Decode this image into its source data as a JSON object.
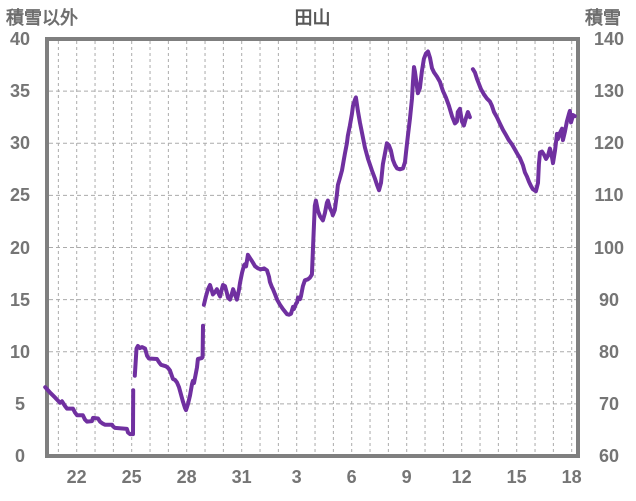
{
  "header": {
    "left_axis_title": "積雪以外",
    "title": "田山",
    "right_axis_title": "積雪"
  },
  "chart_data": {
    "type": "line",
    "title": "田山",
    "legend": "none",
    "grid": "dashed gray, vertical line per day, horizontal line per 5 units",
    "line_color": "#7030A0",
    "y_left": {
      "label": "積雪以外",
      "range": [
        0,
        40
      ],
      "ticks": [
        0,
        5,
        10,
        15,
        20,
        25,
        30,
        35,
        40
      ]
    },
    "y_right": {
      "label": "積雪",
      "range": [
        60,
        140
      ],
      "ticks": [
        60,
        70,
        80,
        90,
        100,
        110,
        120,
        130,
        140
      ],
      "mapping": "right_value = 60 + 2 * left_axis_value"
    },
    "x": {
      "range_days": [
        20.3,
        49.4
      ],
      "tick_labels": [
        "22",
        "25",
        "28",
        "31",
        "3",
        "6",
        "9",
        "12",
        "15",
        "18"
      ],
      "tick_days": [
        22,
        25,
        28,
        31,
        34,
        37,
        40,
        43,
        46,
        49
      ],
      "note": "days of month, month rollover after 31"
    },
    "series": [
      {
        "name": "積雪",
        "units_left_axis": true,
        "segments": [
          [
            [
              20.28,
              6.6
            ],
            [
              20.54,
              6.1
            ],
            [
              20.82,
              5.6
            ],
            [
              21.09,
              5.1
            ],
            [
              21.2,
              5.25
            ],
            [
              21.36,
              4.8
            ],
            [
              21.47,
              4.55
            ],
            [
              21.8,
              4.55
            ],
            [
              21.91,
              4.15
            ],
            [
              22.02,
              3.9
            ],
            [
              22.34,
              3.9
            ],
            [
              22.45,
              3.5
            ],
            [
              22.56,
              3.3
            ],
            [
              22.83,
              3.35
            ],
            [
              22.89,
              3.65
            ],
            [
              23.16,
              3.6
            ],
            [
              23.27,
              3.3
            ],
            [
              23.43,
              3.1
            ],
            [
              23.54,
              3.0
            ],
            [
              23.93,
              3.0
            ],
            [
              23.98,
              2.85
            ],
            [
              24.09,
              2.7
            ],
            [
              24.74,
              2.6
            ],
            [
              24.8,
              2.25
            ],
            [
              24.91,
              2.1
            ],
            [
              25.07,
              2.1
            ],
            [
              25.08,
              6.3
            ]
          ],
          [
            [
              25.17,
              7.7
            ],
            [
              25.26,
              10.3
            ],
            [
              25.34,
              10.55
            ],
            [
              25.45,
              10.35
            ],
            [
              25.56,
              10.45
            ],
            [
              25.73,
              10.3
            ],
            [
              25.84,
              9.6
            ],
            [
              25.94,
              9.35
            ],
            [
              26.38,
              9.3
            ],
            [
              26.49,
              9.0
            ],
            [
              26.6,
              8.75
            ],
            [
              26.87,
              8.6
            ],
            [
              26.98,
              8.45
            ],
            [
              27.09,
              8.2
            ],
            [
              27.25,
              7.4
            ],
            [
              27.36,
              7.3
            ],
            [
              27.47,
              7.05
            ],
            [
              27.58,
              6.6
            ],
            [
              27.69,
              5.9
            ],
            [
              27.8,
              5.2
            ],
            [
              27.91,
              4.6
            ],
            [
              27.96,
              4.4
            ],
            [
              28.07,
              5.0
            ],
            [
              28.18,
              5.8
            ],
            [
              28.29,
              6.9
            ],
            [
              28.34,
              7.2
            ],
            [
              28.4,
              7.0
            ],
            [
              28.51,
              8.0
            ],
            [
              28.56,
              8.5
            ],
            [
              28.61,
              9.3
            ],
            [
              28.83,
              9.4
            ],
            [
              28.87,
              9.5
            ],
            [
              28.89,
              12.5
            ]
          ],
          [
            [
              28.94,
              14.5
            ],
            [
              29.05,
              15.3
            ],
            [
              29.16,
              16.0
            ],
            [
              29.27,
              16.4
            ],
            [
              29.38,
              15.8
            ],
            [
              29.43,
              15.5
            ],
            [
              29.54,
              15.7
            ],
            [
              29.65,
              16.0
            ],
            [
              29.76,
              15.5
            ],
            [
              29.82,
              15.3
            ],
            [
              29.93,
              16.1
            ],
            [
              29.98,
              16.4
            ],
            [
              30.09,
              16.3
            ],
            [
              30.2,
              15.6
            ],
            [
              30.25,
              15.2
            ],
            [
              30.36,
              15.0
            ],
            [
              30.47,
              15.6
            ],
            [
              30.53,
              16.0
            ],
            [
              30.63,
              15.5
            ],
            [
              30.74,
              15.0
            ],
            [
              30.85,
              15.9
            ],
            [
              30.91,
              16.6
            ],
            [
              31.02,
              17.6
            ],
            [
              31.13,
              18.3
            ],
            [
              31.18,
              18.4
            ],
            [
              31.24,
              18.2
            ],
            [
              31.34,
              19.3
            ],
            [
              31.45,
              19.0
            ],
            [
              31.56,
              18.7
            ],
            [
              31.73,
              18.2
            ],
            [
              31.89,
              18.0
            ],
            [
              32.05,
              17.9
            ],
            [
              32.22,
              18.0
            ],
            [
              32.38,
              17.8
            ],
            [
              32.49,
              17.2
            ],
            [
              32.54,
              16.7
            ],
            [
              32.65,
              16.2
            ],
            [
              32.71,
              16.0
            ],
            [
              32.82,
              15.5
            ],
            [
              32.93,
              15.0
            ],
            [
              33.09,
              14.5
            ],
            [
              33.25,
              14.1
            ],
            [
              33.36,
              13.85
            ],
            [
              33.47,
              13.6
            ],
            [
              33.58,
              13.55
            ],
            [
              33.69,
              13.65
            ],
            [
              33.8,
              14.3
            ],
            [
              33.85,
              14.1
            ],
            [
              33.96,
              14.6
            ],
            [
              34.02,
              14.75
            ],
            [
              34.07,
              15.2
            ],
            [
              34.18,
              15.05
            ],
            [
              34.23,
              15.3
            ],
            [
              34.34,
              16.3
            ],
            [
              34.45,
              16.85
            ],
            [
              34.61,
              16.95
            ],
            [
              34.72,
              17.1
            ],
            [
              34.83,
              17.4
            ],
            [
              34.88,
              19.5
            ],
            [
              34.94,
              22.0
            ],
            [
              34.99,
              24.0
            ],
            [
              35.05,
              24.5
            ],
            [
              35.16,
              23.5
            ],
            [
              35.27,
              23.0
            ],
            [
              35.43,
              22.6
            ],
            [
              35.54,
              23.3
            ],
            [
              35.65,
              24.3
            ],
            [
              35.7,
              24.5
            ],
            [
              35.81,
              23.8
            ],
            [
              35.92,
              23.4
            ],
            [
              35.97,
              23.1
            ],
            [
              36.08,
              23.6
            ],
            [
              36.19,
              25.0
            ],
            [
              36.25,
              26.0
            ],
            [
              36.36,
              26.7
            ],
            [
              36.47,
              27.4
            ],
            [
              36.57,
              28.4
            ],
            [
              36.63,
              29.0
            ],
            [
              36.74,
              30.0
            ],
            [
              36.79,
              30.7
            ],
            [
              36.9,
              31.7
            ],
            [
              37.01,
              32.8
            ],
            [
              37.07,
              33.6
            ],
            [
              37.18,
              34.2
            ],
            [
              37.23,
              34.4
            ],
            [
              37.34,
              33.1
            ],
            [
              37.45,
              32.0
            ],
            [
              37.56,
              31.0
            ],
            [
              37.72,
              29.6
            ],
            [
              37.89,
              28.5
            ],
            [
              38.1,
              27.4
            ],
            [
              38.27,
              26.6
            ],
            [
              38.38,
              26.0
            ],
            [
              38.49,
              25.5
            ],
            [
              38.6,
              26.2
            ],
            [
              38.7,
              28.0
            ],
            [
              38.81,
              29.0
            ],
            [
              38.92,
              30.0
            ],
            [
              39.03,
              29.8
            ],
            [
              39.14,
              29.3
            ],
            [
              39.25,
              28.4
            ],
            [
              39.36,
              27.9
            ],
            [
              39.47,
              27.6
            ],
            [
              39.63,
              27.5
            ],
            [
              39.8,
              27.6
            ],
            [
              39.91,
              28.2
            ],
            [
              39.96,
              29.1
            ],
            [
              40.07,
              30.8
            ],
            [
              40.18,
              32.4
            ],
            [
              40.29,
              34.3
            ],
            [
              40.34,
              35.8
            ],
            [
              40.4,
              37.3
            ],
            [
              40.45,
              36.9
            ],
            [
              40.56,
              35.4
            ],
            [
              40.61,
              34.8
            ],
            [
              40.72,
              35.3
            ],
            [
              40.83,
              36.9
            ],
            [
              40.94,
              38.1
            ],
            [
              41.05,
              38.6
            ],
            [
              41.16,
              38.8
            ],
            [
              41.27,
              38.2
            ],
            [
              41.38,
              37.2
            ],
            [
              41.49,
              36.8
            ],
            [
              41.65,
              36.4
            ],
            [
              41.81,
              35.9
            ],
            [
              41.98,
              35.0
            ],
            [
              42.14,
              34.4
            ],
            [
              42.3,
              33.6
            ],
            [
              42.47,
              32.6
            ],
            [
              42.63,
              31.9
            ],
            [
              42.74,
              32.1
            ],
            [
              42.79,
              33.0
            ],
            [
              42.9,
              33.3
            ],
            [
              43.01,
              32.1
            ],
            [
              43.12,
              31.7
            ],
            [
              43.23,
              32.4
            ],
            [
              43.34,
              33.0
            ],
            [
              43.45,
              32.5
            ]
          ],
          [
            [
              43.61,
              37.1
            ],
            [
              43.72,
              36.8
            ],
            [
              43.83,
              36.2
            ],
            [
              43.94,
              35.7
            ],
            [
              44.05,
              35.2
            ],
            [
              44.21,
              34.7
            ],
            [
              44.37,
              34.3
            ],
            [
              44.54,
              34.0
            ],
            [
              44.65,
              33.6
            ],
            [
              44.76,
              33.0
            ],
            [
              44.92,
              32.5
            ],
            [
              45.08,
              31.9
            ],
            [
              45.25,
              31.3
            ],
            [
              45.41,
              30.8
            ],
            [
              45.57,
              30.3
            ],
            [
              45.74,
              29.9
            ],
            [
              45.9,
              29.4
            ],
            [
              46.06,
              28.9
            ],
            [
              46.17,
              28.6
            ],
            [
              46.34,
              27.9
            ],
            [
              46.45,
              27.2
            ],
            [
              46.56,
              26.8
            ],
            [
              46.67,
              26.3
            ],
            [
              46.78,
              25.9
            ],
            [
              46.88,
              25.6
            ],
            [
              47.05,
              25.4
            ],
            [
              47.16,
              26.2
            ],
            [
              47.21,
              28.0
            ],
            [
              47.27,
              29.1
            ],
            [
              47.38,
              29.2
            ],
            [
              47.49,
              28.9
            ],
            [
              47.6,
              28.5
            ],
            [
              47.7,
              28.8
            ],
            [
              47.81,
              29.5
            ],
            [
              47.92,
              28.7
            ],
            [
              47.98,
              28.1
            ],
            [
              48.09,
              29.3
            ],
            [
              48.2,
              30.9
            ],
            [
              48.25,
              30.4
            ],
            [
              48.36,
              31.0
            ],
            [
              48.47,
              31.4
            ],
            [
              48.52,
              30.3
            ],
            [
              48.63,
              31.1
            ],
            [
              48.74,
              32.1
            ],
            [
              48.85,
              32.8
            ],
            [
              48.9,
              33.1
            ],
            [
              48.96,
              32.0
            ],
            [
              49.01,
              32.3
            ],
            [
              49.07,
              32.7
            ],
            [
              49.17,
              32.6
            ]
          ]
        ]
      }
    ]
  },
  "colors": {
    "line": "#7030A0",
    "plot_border": "#7f7f7f",
    "gridline": "#ababab",
    "tick_text": "#757575",
    "title_text": "#595959",
    "background": "#ffffff"
  }
}
